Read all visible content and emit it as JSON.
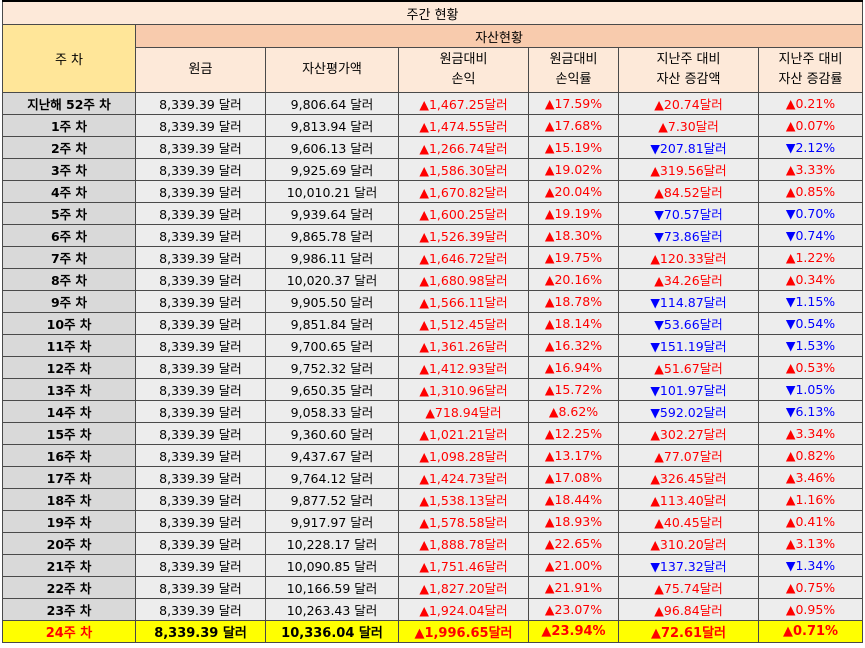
{
  "title": "주간 현황",
  "header": {
    "week_col": "주 차",
    "group": "자산현황",
    "columns": [
      {
        "line1": "원금",
        "line2": ""
      },
      {
        "line1": "자산평가액",
        "line2": ""
      },
      {
        "line1": "원금대비",
        "line2": "손익"
      },
      {
        "line1": "원금대비",
        "line2": "손익률"
      },
      {
        "line1": "지난주 대비",
        "line2": "자산 증감액"
      },
      {
        "line1": "지난주 대비",
        "line2": "자산 증감률"
      }
    ]
  },
  "colors": {
    "up": "#ff0000",
    "down": "#0000ff",
    "highlight": "#ffff00",
    "header": "#f8cbad",
    "week_header": "#ffe699"
  },
  "rows": [
    {
      "week": "지난해 52주 차",
      "principal": "8,339.39 달러",
      "valuation": "9,806.64 달러",
      "pl": "▲1,467.25달러",
      "pl_rate": "▲17.59%",
      "wow": "▲20.74달러",
      "wow_rate": "▲0.21%",
      "dir": "up"
    },
    {
      "week": "1주 차",
      "principal": "8,339.39 달러",
      "valuation": "9,813.94 달러",
      "pl": "▲1,474.55달러",
      "pl_rate": "▲17.68%",
      "wow": "▲7.30달러",
      "wow_rate": "▲0.07%",
      "dir": "up"
    },
    {
      "week": "2주 차",
      "principal": "8,339.39 달러",
      "valuation": "9,606.13 달러",
      "pl": "▲1,266.74달러",
      "pl_rate": "▲15.19%",
      "wow": "▼207.81달러",
      "wow_rate": "▼2.12%",
      "dir": "down"
    },
    {
      "week": "3주 차",
      "principal": "8,339.39 달러",
      "valuation": "9,925.69 달러",
      "pl": "▲1,586.30달러",
      "pl_rate": "▲19.02%",
      "wow": "▲319.56달러",
      "wow_rate": "▲3.33%",
      "dir": "up"
    },
    {
      "week": "4주 차",
      "principal": "8,339.39 달러",
      "valuation": "10,010.21 달러",
      "pl": "▲1,670.82달러",
      "pl_rate": "▲20.04%",
      "wow": "▲84.52달러",
      "wow_rate": "▲0.85%",
      "dir": "up"
    },
    {
      "week": "5주 차",
      "principal": "8,339.39 달러",
      "valuation": "9,939.64 달러",
      "pl": "▲1,600.25달러",
      "pl_rate": "▲19.19%",
      "wow": "▼70.57달러",
      "wow_rate": "▼0.70%",
      "dir": "down"
    },
    {
      "week": "6주 차",
      "principal": "8,339.39 달러",
      "valuation": "9,865.78 달러",
      "pl": "▲1,526.39달러",
      "pl_rate": "▲18.30%",
      "wow": "▼73.86달러",
      "wow_rate": "▼0.74%",
      "dir": "down"
    },
    {
      "week": "7주 차",
      "principal": "8,339.39 달러",
      "valuation": "9,986.11 달러",
      "pl": "▲1,646.72달러",
      "pl_rate": "▲19.75%",
      "wow": "▲120.33달러",
      "wow_rate": "▲1.22%",
      "dir": "up"
    },
    {
      "week": "8주 차",
      "principal": "8,339.39 달러",
      "valuation": "10,020.37 달러",
      "pl": "▲1,680.98달러",
      "pl_rate": "▲20.16%",
      "wow": "▲34.26달러",
      "wow_rate": "▲0.34%",
      "dir": "up"
    },
    {
      "week": "9주 차",
      "principal": "8,339.39 달러",
      "valuation": "9,905.50 달러",
      "pl": "▲1,566.11달러",
      "pl_rate": "▲18.78%",
      "wow": "▼114.87달러",
      "wow_rate": "▼1.15%",
      "dir": "down"
    },
    {
      "week": "10주 차",
      "principal": "8,339.39 달러",
      "valuation": "9,851.84 달러",
      "pl": "▲1,512.45달러",
      "pl_rate": "▲18.14%",
      "wow": "▼53.66달러",
      "wow_rate": "▼0.54%",
      "dir": "down"
    },
    {
      "week": "11주 차",
      "principal": "8,339.39 달러",
      "valuation": "9,700.65 달러",
      "pl": "▲1,361.26달러",
      "pl_rate": "▲16.32%",
      "wow": "▼151.19달러",
      "wow_rate": "▼1.53%",
      "dir": "down"
    },
    {
      "week": "12주 차",
      "principal": "8,339.39 달러",
      "valuation": "9,752.32 달러",
      "pl": "▲1,412.93달러",
      "pl_rate": "▲16.94%",
      "wow": "▲51.67달러",
      "wow_rate": "▲0.53%",
      "dir": "up"
    },
    {
      "week": "13주 차",
      "principal": "8,339.39 달러",
      "valuation": "9,650.35 달러",
      "pl": "▲1,310.96달러",
      "pl_rate": "▲15.72%",
      "wow": "▼101.97달러",
      "wow_rate": "▼1.05%",
      "dir": "down"
    },
    {
      "week": "14주 차",
      "principal": "8,339.39 달러",
      "valuation": "9,058.33 달러",
      "pl": "▲718.94달러",
      "pl_rate": "▲8.62%",
      "wow": "▼592.02달러",
      "wow_rate": "▼6.13%",
      "dir": "down"
    },
    {
      "week": "15주 차",
      "principal": "8,339.39 달러",
      "valuation": "9,360.60 달러",
      "pl": "▲1,021.21달러",
      "pl_rate": "▲12.25%",
      "wow": "▲302.27달러",
      "wow_rate": "▲3.34%",
      "dir": "up"
    },
    {
      "week": "16주 차",
      "principal": "8,339.39 달러",
      "valuation": "9,437.67 달러",
      "pl": "▲1,098.28달러",
      "pl_rate": "▲13.17%",
      "wow": "▲77.07달러",
      "wow_rate": "▲0.82%",
      "dir": "up"
    },
    {
      "week": "17주 차",
      "principal": "8,339.39 달러",
      "valuation": "9,764.12 달러",
      "pl": "▲1,424.73달러",
      "pl_rate": "▲17.08%",
      "wow": "▲326.45달러",
      "wow_rate": "▲3.46%",
      "dir": "up"
    },
    {
      "week": "18주 차",
      "principal": "8,339.39 달러",
      "valuation": "9,877.52 달러",
      "pl": "▲1,538.13달러",
      "pl_rate": "▲18.44%",
      "wow": "▲113.40달러",
      "wow_rate": "▲1.16%",
      "dir": "up"
    },
    {
      "week": "19주 차",
      "principal": "8,339.39 달러",
      "valuation": "9,917.97 달러",
      "pl": "▲1,578.58달러",
      "pl_rate": "▲18.93%",
      "wow": "▲40.45달러",
      "wow_rate": "▲0.41%",
      "dir": "up"
    },
    {
      "week": "20주 차",
      "principal": "8,339.39 달러",
      "valuation": "10,228.17 달러",
      "pl": "▲1,888.78달러",
      "pl_rate": "▲22.65%",
      "wow": "▲310.20달러",
      "wow_rate": "▲3.13%",
      "dir": "up"
    },
    {
      "week": "21주 차",
      "principal": "8,339.39 달러",
      "valuation": "10,090.85 달러",
      "pl": "▲1,751.46달러",
      "pl_rate": "▲21.00%",
      "wow": "▼137.32달러",
      "wow_rate": "▼1.34%",
      "dir": "down"
    },
    {
      "week": "22주 차",
      "principal": "8,339.39 달러",
      "valuation": "10,166.59 달러",
      "pl": "▲1,827.20달러",
      "pl_rate": "▲21.91%",
      "wow": "▲75.74달러",
      "wow_rate": "▲0.75%",
      "dir": "up"
    },
    {
      "week": "23주 차",
      "principal": "8,339.39 달러",
      "valuation": "10,263.43 달러",
      "pl": "▲1,924.04달러",
      "pl_rate": "▲23.07%",
      "wow": "▲96.84달러",
      "wow_rate": "▲0.95%",
      "dir": "up"
    },
    {
      "week": "24주 차",
      "principal": "8,339.39 달러",
      "valuation": "10,336.04 달러",
      "pl": "▲1,996.65달러",
      "pl_rate": "▲23.94%",
      "wow": "▲72.61달러",
      "wow_rate": "▲0.71%",
      "dir": "up",
      "current": true
    }
  ]
}
